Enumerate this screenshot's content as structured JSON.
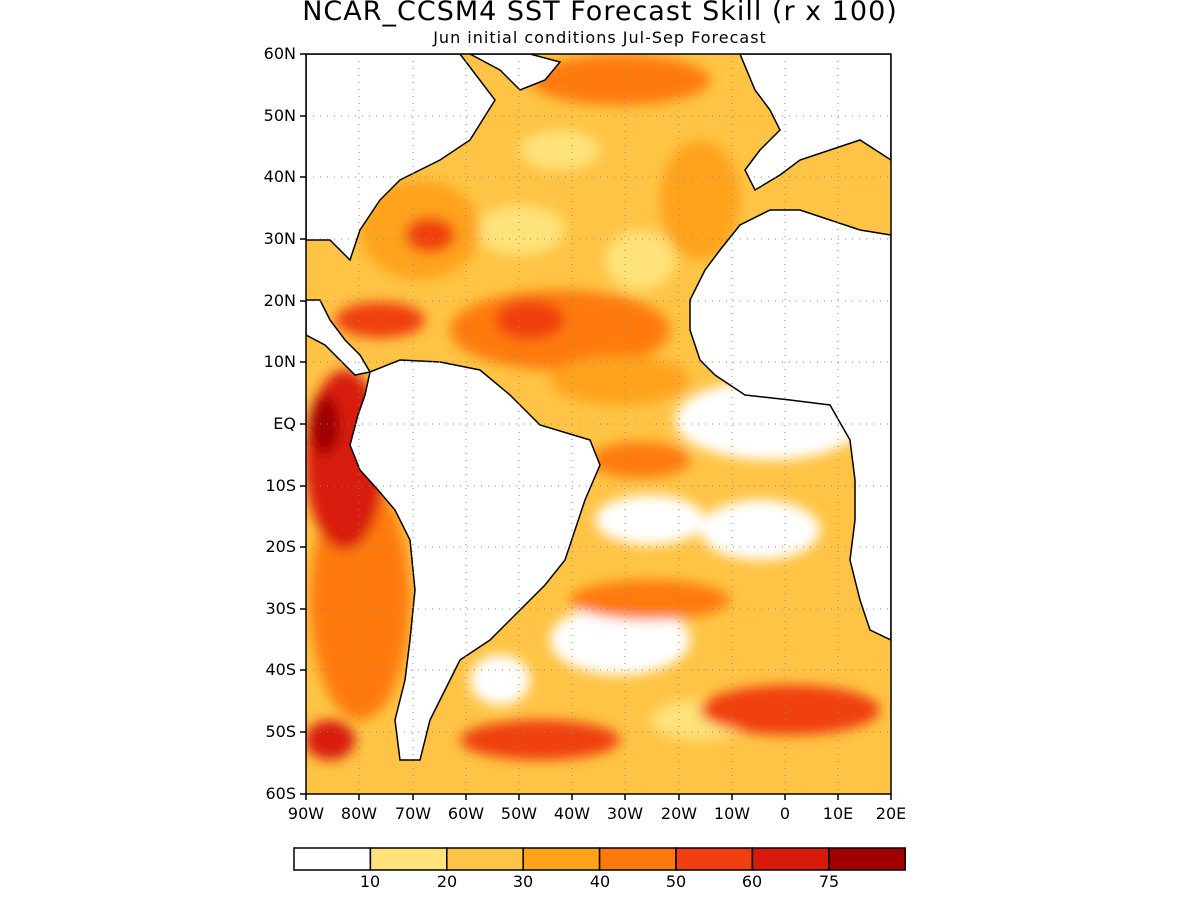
{
  "title": "NCAR_CCSM4 SST Forecast Skill (r x 100)",
  "subtitle": "Jun initial conditions  Jul-Sep Forecast",
  "lat_labels": [
    "60N",
    "50N",
    "40N",
    "30N",
    "20N",
    "10N",
    "EQ",
    "10S",
    "20S",
    "30S",
    "40S",
    "50S",
    "60S"
  ],
  "lon_labels": [
    "90W",
    "80W",
    "70W",
    "60W",
    "50W",
    "40W",
    "30W",
    "20W",
    "10W",
    "0",
    "10E",
    "20E"
  ],
  "colorbar": {
    "colors": [
      "#ffffff",
      "#ffe27a",
      "#ffc445",
      "#ffa31a",
      "#ff7a0a",
      "#f04010",
      "#d81a0a",
      "#a00000"
    ],
    "labels": [
      "10",
      "20",
      "30",
      "40",
      "50",
      "60",
      "75"
    ]
  },
  "map": {
    "land_color": "#ffffff",
    "coastline_color": "#000000",
    "grid": "dotted"
  }
}
